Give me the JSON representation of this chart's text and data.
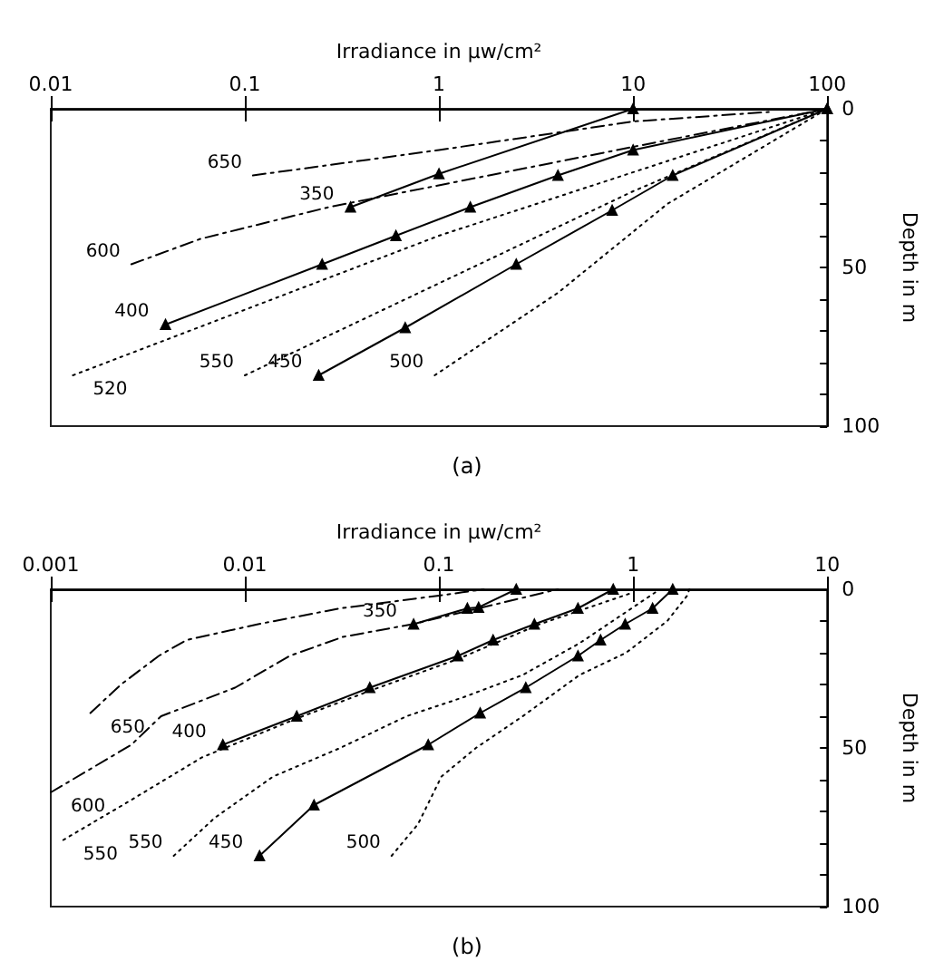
{
  "chart_data": [
    {
      "type": "line",
      "xlabel": "Irradiance in μw/cm²",
      "ylabel": "Depth in m",
      "log": "x",
      "xlim": [
        0.01,
        100
      ],
      "xticks": [
        0.01,
        0.1,
        1,
        10,
        100
      ],
      "ylim": [
        100,
        0
      ],
      "yticks": [
        0,
        {
          "value": 10,
          "label": null
        },
        {
          "value": 20,
          "label": null
        },
        {
          "value": 30,
          "label": null
        },
        {
          "value": 40,
          "label": null
        },
        50,
        {
          "value": 60,
          "label": null
        },
        {
          "value": 70,
          "label": null
        },
        {
          "value": 80,
          "label": null
        },
        {
          "value": 90,
          "label": null
        },
        100
      ],
      "annotations": [
        "(a)"
      ],
      "series": [
        {
          "name": "650",
          "color": "#000000",
          "line_style": "dashed",
          "marker": "none",
          "x": [
            0.11,
            1,
            10,
            50
          ],
          "values": [
            21,
            13,
            4,
            1
          ]
        },
        {
          "name": "600",
          "color": "#000000",
          "line_style": "dashed",
          "marker": "none",
          "x": [
            0.026,
            0.059,
            0.27,
            10,
            100
          ],
          "values": [
            49,
            41,
            31,
            12,
            0
          ]
        },
        {
          "name": "350",
          "color": "#000000",
          "line_style": "solid",
          "marker": "triangle",
          "x": [
            0.35,
            1,
            10
          ],
          "values": [
            31,
            20.5,
            0
          ]
        },
        {
          "name": "400",
          "color": "#000000",
          "line_style": "solid",
          "marker": "triangle",
          "x": [
            0.039,
            0.25,
            0.6,
            1.45,
            4.1,
            10,
            100
          ],
          "values": [
            68,
            49,
            40,
            31,
            21,
            13,
            0
          ]
        },
        {
          "name": "520",
          "color": "#000000",
          "line_style": "dotted",
          "marker": "none",
          "x": [
            0.013,
            1,
            100
          ],
          "values": [
            84,
            40,
            0
          ]
        },
        {
          "name": "550",
          "color": "#000000",
          "line_style": "dotted",
          "marker": "none",
          "x": [
            0.1,
            1,
            10,
            100
          ],
          "values": [
            84,
            55,
            26,
            0
          ]
        },
        {
          "name": "450",
          "color": "#000000",
          "line_style": "solid",
          "marker": "triangle",
          "x": [
            0.24,
            0.67,
            2.5,
            7.8,
            16,
            100
          ],
          "values": [
            84,
            69,
            49,
            32,
            21,
            0
          ]
        },
        {
          "name": "500",
          "color": "#000000",
          "line_style": "dotted",
          "marker": "none",
          "x": [
            0.95,
            4.1,
            15,
            100
          ],
          "values": [
            84,
            58,
            30,
            0
          ]
        }
      ]
    },
    {
      "type": "line",
      "xlabel": "Irradiance in μw/cm²",
      "ylabel": "Depth in m",
      "log": "x",
      "xlim": [
        0.001,
        10
      ],
      "xticks": [
        0.001,
        0.01,
        0.1,
        1,
        10
      ],
      "ylim": [
        100,
        0
      ],
      "yticks": [
        0,
        {
          "value": 10,
          "label": null
        },
        {
          "value": 20,
          "label": null
        },
        {
          "value": 30,
          "label": null
        },
        {
          "value": 40,
          "label": null
        },
        50,
        {
          "value": 60,
          "label": null
        },
        {
          "value": 70,
          "label": null
        },
        {
          "value": 80,
          "label": null
        },
        {
          "value": 90,
          "label": null
        },
        100
      ],
      "annotations": [
        "(b)"
      ],
      "series": [
        {
          "name": "650",
          "color": "#000000",
          "line_style": "dashed",
          "marker": "none",
          "x": [
            0.0016,
            0.0023,
            0.0036,
            0.005,
            0.0117,
            0.031,
            0.1,
            0.17
          ],
          "values": [
            39,
            30,
            21,
            16,
            11,
            6,
            2,
            0
          ]
        },
        {
          "name": "600",
          "color": "#000000",
          "line_style": "dashed",
          "marker": "none",
          "x": [
            0.001,
            0.0026,
            0.0037,
            0.0089,
            0.017,
            0.032,
            0.073,
            0.16,
            0.41
          ],
          "values": [
            64,
            49,
            40,
            31,
            21,
            15,
            11,
            6,
            0
          ]
        },
        {
          "name": "350",
          "color": "#000000",
          "line_style": "solid",
          "marker": "triangle",
          "x": [
            0.074,
            0.14,
            0.16,
            0.25
          ],
          "values": [
            11,
            6,
            5.7,
            0
          ]
        },
        {
          "name": "400",
          "color": "#000000",
          "line_style": "solid",
          "marker": "triangle",
          "x": [
            0.0077,
            0.0185,
            0.044,
            0.125,
            0.19,
            0.31,
            0.52,
            0.79
          ],
          "values": [
            49,
            40,
            31,
            21,
            16,
            11,
            6,
            0
          ]
        },
        {
          "name": "550",
          "color": "#000000",
          "line_style": "dotted",
          "marker": "none",
          "x": [
            0.00116,
            0.0025,
            0.006,
            0.018,
            0.044,
            0.125,
            0.33,
            1.0
          ],
          "values": [
            79,
            67,
            53,
            41,
            32,
            22,
            11,
            1
          ]
        },
        {
          "name": "550",
          "color": "#000000",
          "line_style": "dotted",
          "marker": "none",
          "x": [
            0.0043,
            0.007,
            0.014,
            0.031,
            0.068,
            0.134,
            0.27,
            0.53,
            1.3
          ],
          "values": [
            84,
            72,
            59,
            50,
            40,
            34,
            27,
            17,
            1
          ]
        },
        {
          "name": "450",
          "color": "#000000",
          "line_style": "solid",
          "marker": "triangle",
          "x": [
            0.0119,
            0.0227,
            0.088,
            0.163,
            0.28,
            0.52,
            0.68,
            0.91,
            1.26,
            1.6
          ],
          "values": [
            84,
            68,
            49,
            39,
            31,
            21,
            16,
            11,
            6,
            0
          ]
        },
        {
          "name": "500",
          "color": "#000000",
          "line_style": "dotted",
          "marker": "none",
          "x": [
            0.057,
            0.078,
            0.103,
            0.155,
            0.27,
            0.53,
            0.92,
            1.5,
            1.9,
            1.95
          ],
          "values": [
            84,
            74,
            59,
            50,
            40,
            27,
            20,
            10,
            2,
            0
          ]
        }
      ]
    }
  ]
}
